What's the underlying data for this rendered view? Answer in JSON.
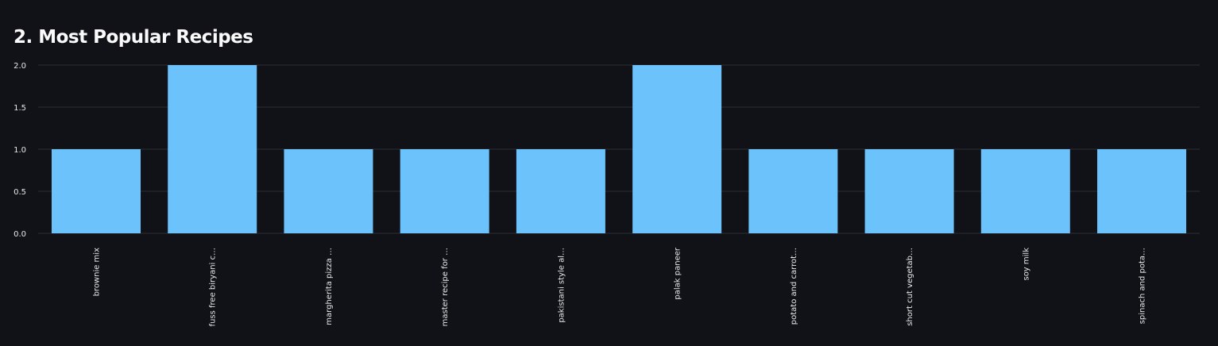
{
  "header": {
    "title": "2. Most Popular Recipes"
  },
  "colors": {
    "background": "#111217",
    "bar": "#6cc2fb",
    "grid": "#2b2d35",
    "text": "#e6e6e6"
  },
  "chart_data": {
    "type": "bar",
    "title": "",
    "xlabel": "",
    "ylabel": "",
    "categories": [
      "brownie mix",
      "fuss free biryani c…",
      "margherita pizza …",
      "master recipe for …",
      "pakistani style al…",
      "palak paneer",
      "potato and carrot…",
      "short cut vegetab…",
      "soy milk",
      "spinach and pota…"
    ],
    "values": [
      1,
      2,
      1,
      1,
      1,
      2,
      1,
      1,
      1,
      1
    ],
    "ylim": [
      0,
      2
    ],
    "yticks": [
      "0.0",
      "0.5",
      "1.0",
      "1.5",
      "2.0"
    ],
    "grid": true,
    "legend": "none"
  }
}
